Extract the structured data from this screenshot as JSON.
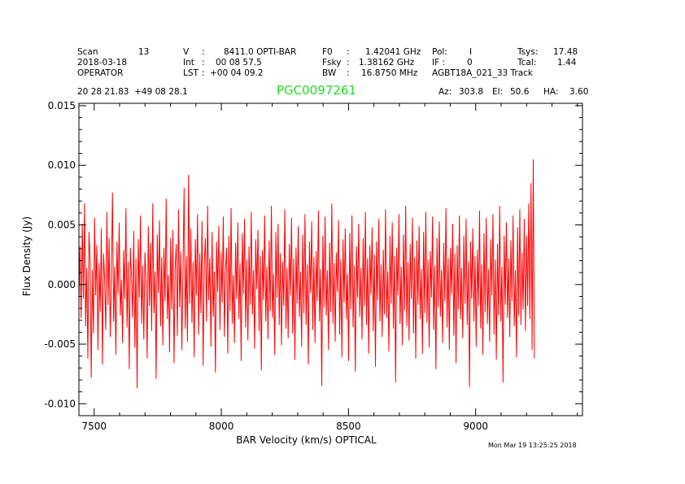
{
  "header": {
    "scan_label": "Scan",
    "scan_value": "13",
    "date": "2018-03-18",
    "operator": "OPERATOR",
    "v_label": "V",
    "v_sep": ":",
    "v_value": "8411.0 OPTI-BAR",
    "int_label": "Int",
    "int_sep": ":",
    "int_value": "00 08 57.5",
    "lst_label": "LST",
    "lst_sep": ":",
    "lst_value": "+00 04 09.2",
    "f0_label": "F0",
    "f0_sep": ":",
    "f0_value": "1.42041 GHz",
    "fsky_label": "Fsky",
    "fsky_sep": ":",
    "fsky_value": "1.38162 GHz",
    "bw_label": "BW",
    "bw_sep": ":",
    "bw_value": "16.8750 MHz",
    "pol_label": "Pol:",
    "pol_value": "I",
    "if_label": "IF :",
    "if_value": "0",
    "project": "AGBT18A_021_33 Track",
    "tsys_label": "Tsys:",
    "tsys_value": "17.48",
    "tcal_label": "Tcal:",
    "tcal_value": "1.44",
    "coords": "20 28 21.83  +49 08 28.1",
    "object_name": "PGC0097261",
    "az_label": "Az:",
    "az_value": "303.8",
    "el_label": "El:",
    "el_value": "50.6",
    "ha_label": "HA:",
    "ha_value": "3.60"
  },
  "footer": {
    "timestamp": "Mon Mar 19 13:25:25 2018"
  },
  "colors": {
    "trace": "#ff0000",
    "object_name": "#22dd22",
    "axes": "#000000"
  },
  "chart_data": {
    "type": "line",
    "xlabel": "BAR Velocity (km/s) OPTICAL",
    "ylabel": "Flux Density (Jy)",
    "xlim": [
      7440,
      9420
    ],
    "ylim": [
      -0.011,
      0.0152
    ],
    "xticks": [
      7500,
      8000,
      8500,
      9000
    ],
    "xtick_labels": [
      "7500",
      "8000",
      "8500",
      "9000"
    ],
    "yticks": [
      -0.01,
      -0.005,
      0.0,
      0.005,
      0.01,
      0.015
    ],
    "ytick_labels": [
      "-0.010",
      "-0.005",
      "0.000",
      "0.005",
      "0.010",
      "0.015"
    ],
    "grid": false,
    "series": [
      {
        "x_start": 7440,
        "x_step": 4.4,
        "values": [
          -0.0015,
          0.0032,
          -0.0028,
          0.0051,
          -0.0012,
          0.0068,
          -0.0035,
          0.0014,
          -0.0062,
          0.0044,
          0.0021,
          -0.0078,
          0.0012,
          -0.0041,
          0.0056,
          -0.0009,
          0.0033,
          -0.0055,
          0.0018,
          -0.0023,
          0.0047,
          -0.0067,
          0.0026,
          0.0005,
          -0.0038,
          0.0061,
          -0.0017,
          0.0039,
          -0.0044,
          0.0009,
          0.0077,
          -0.0031,
          0.0015,
          -0.0059,
          0.0036,
          -0.0008,
          0.0052,
          -0.0026,
          0.0004,
          -0.0049,
          0.0029,
          -0.0012,
          0.0064,
          -0.0036,
          0.0019,
          -0.0071,
          0.0031,
          0.0007,
          -0.0028,
          0.0045,
          -0.0053,
          0.0022,
          -0.0087,
          0.0038,
          -0.0011,
          0.0058,
          -0.0033,
          0.0016,
          -0.0046,
          0.0027,
          0.0003,
          -0.0062,
          0.0049,
          -0.0018,
          0.0035,
          -0.0039,
          0.0068,
          -0.0024,
          0.0011,
          -0.0079,
          0.0042,
          -0.0007,
          0.0054,
          -0.0035,
          0.0023,
          -0.0051,
          0.0031,
          -0.0014,
          0.0072,
          -0.0029,
          0.0008,
          -0.0057,
          0.0039,
          -0.0021,
          0.0046,
          -0.0066,
          0.0014,
          0.0034,
          -0.0043,
          0.0063,
          -0.0019,
          0.0028,
          -0.0055,
          0.0012,
          0.0081,
          -0.0037,
          0.0024,
          -0.0048,
          0.0092,
          -0.0016,
          0.0047,
          -0.0032,
          0.0019,
          -0.0061,
          0.0038,
          -0.0009,
          0.0059,
          -0.0042,
          0.0026,
          -0.0024,
          0.0053,
          -0.0068,
          0.0017,
          0.0039,
          -0.0031,
          0.0066,
          -0.0013,
          0.0022,
          -0.0052,
          0.0044,
          -0.0027,
          0.0011,
          -0.0074,
          0.0036,
          -0.0006,
          0.0049,
          -0.0038,
          0.0027,
          -0.0015,
          0.0057,
          -0.0044,
          0.0013,
          0.0031,
          -0.0058,
          0.0041,
          -0.0022,
          0.0064,
          -0.0033,
          0.0008,
          -0.0049,
          0.0035,
          -0.0012,
          0.0052,
          -0.0029,
          0.0018,
          -0.0064,
          0.0043,
          -0.0008,
          0.0055,
          -0.0036,
          0.0021,
          -0.0047,
          0.0032,
          -0.0017,
          0.0061,
          -0.0025,
          0.0012,
          -0.0054,
          0.0038,
          -0.0004,
          0.0046,
          -0.0039,
          0.0024,
          -0.0072,
          0.0029,
          -0.0013,
          0.0058,
          -0.0031,
          0.0015,
          -0.0046,
          0.0037,
          -0.0022,
          0.0066,
          -0.0028,
          0.0009,
          -0.0059,
          0.0044,
          -0.0011,
          0.0051,
          -0.0034,
          0.0026,
          -0.0051,
          0.0019,
          -0.0018,
          0.0063,
          -0.0037,
          0.0014,
          -0.0045,
          0.0034,
          -0.0009,
          0.0056,
          -0.0041,
          0.0022,
          -0.0063,
          0.0031,
          -0.0016,
          0.0049,
          -0.0027,
          0.0011,
          -0.0052,
          0.0042,
          -0.0024,
          0.0059,
          -0.0034,
          0.0017,
          -0.0067,
          0.0036,
          -0.0007,
          0.0053,
          -0.0038,
          0.0023,
          -0.0049,
          0.0028,
          -0.0014,
          0.0062,
          -0.0031,
          0.0013,
          -0.0085,
          0.0041,
          -0.0019,
          0.0057,
          -0.0026,
          0.0012,
          -0.0055,
          0.0035,
          -0.0023,
          0.0068,
          -0.0033,
          0.0018,
          -0.0048,
          0.0027,
          -0.0006,
          0.0054,
          -0.0042,
          0.0021,
          -0.0061,
          0.0038,
          -0.0015,
          0.0047,
          -0.0029,
          0.0009,
          -0.0064,
          0.0043,
          -0.0021,
          0.0058,
          -0.0036,
          0.0016,
          -0.0073,
          0.0032,
          -0.0011,
          0.0051,
          -0.0027,
          0.0014,
          -0.0046,
          0.0039,
          -0.0018,
          0.0061,
          -0.0034,
          0.0022,
          -0.0058,
          0.0033,
          -0.0008,
          0.0048,
          -0.0039,
          0.0025,
          -0.0069,
          0.0036,
          -0.0013,
          0.0055,
          -0.0031,
          0.0017,
          -0.0044,
          0.0029,
          -0.0025,
          0.0063,
          -0.0028,
          0.0011,
          -0.0056,
          0.0041,
          -0.0016,
          0.0052,
          -0.0037,
          0.0024,
          -0.0082,
          0.0031,
          -0.0009,
          0.0059,
          -0.0033,
          0.0015,
          -0.0051,
          0.0042,
          -0.0022,
          0.0066,
          -0.0035,
          0.0019,
          -0.0047,
          0.0034,
          -0.0012,
          0.0056,
          -0.0041,
          0.0023,
          -0.0062,
          0.0037,
          -0.0017,
          0.0049,
          -0.0029,
          0.0013,
          -0.0058,
          0.0044,
          -0.0024,
          0.0061,
          -0.0032,
          0.0021,
          -0.0053,
          0.0028,
          -0.0011,
          0.0057,
          -0.0038,
          0.0016,
          -0.0071,
          0.0039,
          -0.0019,
          0.0053,
          -0.0027,
          0.0012,
          -0.0049,
          0.0035,
          -0.0014,
          0.0064,
          -0.0036,
          0.0022,
          -0.0055,
          0.0031,
          -0.0008,
          0.0051,
          -0.0043,
          0.0026,
          -0.0066,
          0.0033,
          -0.0021,
          0.0058,
          -0.0029,
          0.0014,
          -0.0045,
          0.0041,
          -0.0016,
          0.0055,
          -0.0034,
          0.0019,
          -0.0086,
          0.0036,
          -0.0012,
          0.0047,
          -0.0031,
          0.0024,
          -0.0052,
          0.0029,
          -0.0018,
          0.0062,
          -0.0037,
          0.0017,
          -0.0059,
          0.0043,
          -0.0023,
          0.0056,
          -0.0033,
          0.0013,
          -0.0048,
          0.0038,
          -0.0009,
          0.0059,
          -0.0042,
          0.0021,
          -0.0063,
          0.0034,
          -0.0026,
          0.0066,
          -0.0031,
          0.0015,
          -0.0082,
          0.0041,
          -0.0017,
          0.0052,
          -0.0028,
          0.0022,
          -0.0044,
          0.0037,
          -0.0014,
          0.0058,
          -0.0035,
          0.0012,
          -0.0061,
          0.0048,
          -0.0026,
          0.0063,
          -0.0034,
          0.0027,
          -0.0021,
          0.0055,
          -0.0039,
          0.0041,
          -0.0018,
          0.0068,
          -0.0029,
          0.0085,
          -0.0055,
          0.0105,
          -0.0062
        ]
      }
    ]
  }
}
